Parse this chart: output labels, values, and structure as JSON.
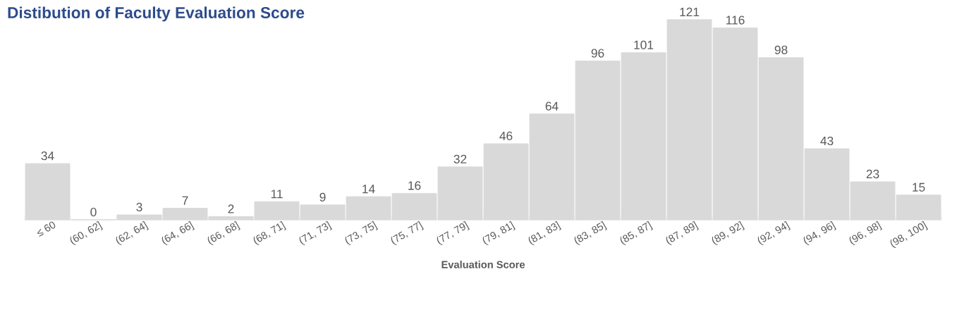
{
  "chart_data": {
    "type": "bar",
    "title": "Distibution of Faculty Evaluation Score",
    "xlabel": "Evaluation Score",
    "categories": [
      "≤ 60",
      "(60, 62]",
      "(62, 64]",
      "(64, 66]",
      "(66, 68]",
      "(68, 71]",
      "(71, 73]",
      "(73, 75]",
      "(75, 77]",
      "(77, 79]",
      "(79, 81]",
      "(81, 83]",
      "(83, 85]",
      "(85, 87]",
      "(87, 89]",
      "(89, 92]",
      "(92, 94]",
      "(94, 96]",
      "(96, 98]",
      "(98, 100]"
    ],
    "values": [
      34,
      0,
      3,
      7,
      2,
      11,
      9,
      14,
      16,
      32,
      46,
      64,
      96,
      101,
      121,
      116,
      98,
      43,
      23,
      15
    ],
    "color": "#d9d9d9",
    "data_labels": true
  }
}
